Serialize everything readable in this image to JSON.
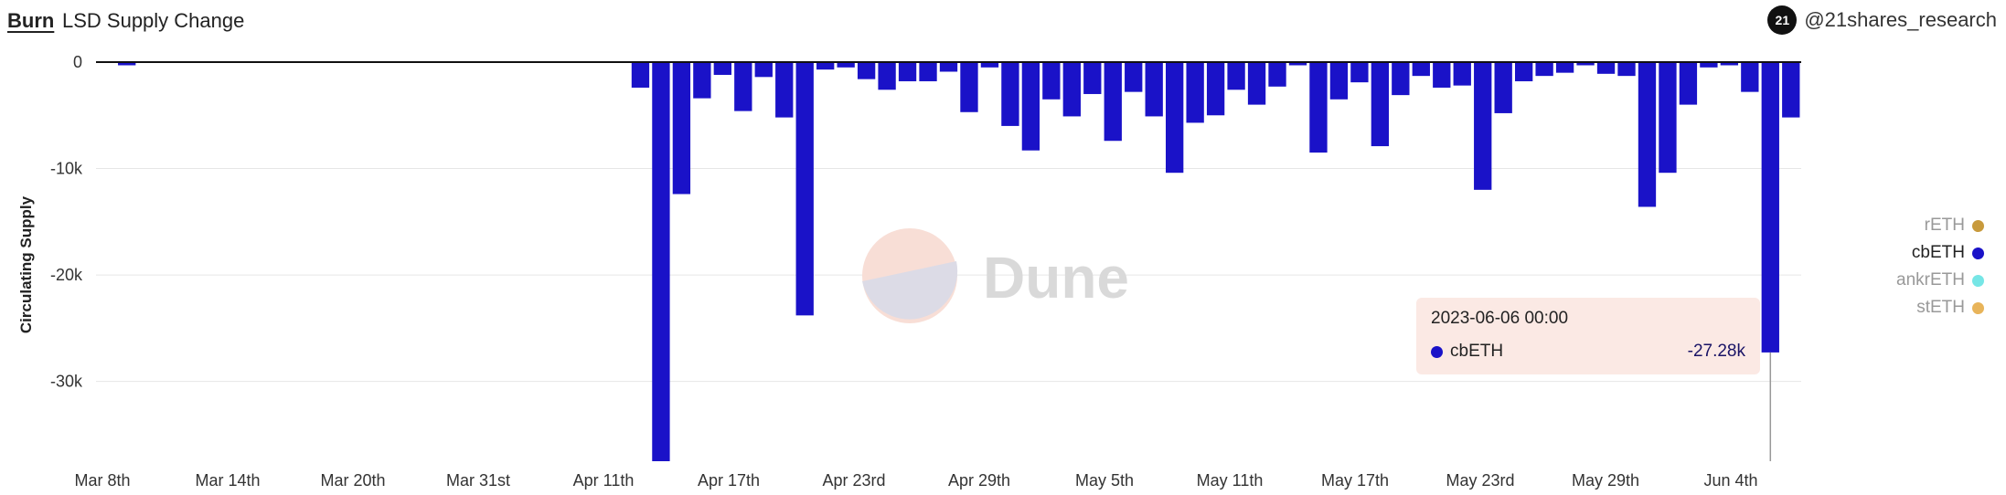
{
  "header": {
    "tabs": [
      {
        "label": "Burn",
        "active": true
      },
      {
        "label": "LSD Supply Change",
        "active": false
      }
    ],
    "brand_logo_text": "21",
    "brand_handle": "@21shares_research"
  },
  "watermark": {
    "text": "Dune"
  },
  "legend": [
    {
      "label": "rETH",
      "color": "#c89a3c",
      "highlighted": false
    },
    {
      "label": "cbETH",
      "color": "#1a12c8",
      "highlighted": true
    },
    {
      "label": "ankrETH",
      "color": "#76e6e6",
      "highlighted": false
    },
    {
      "label": "stETH",
      "color": "#e8b45a",
      "highlighted": false
    }
  ],
  "tooltip": {
    "title": "2023-06-06 00:00",
    "series": "cbETH",
    "value": "-27.28k",
    "color": "#1a12c8"
  },
  "chart_data": {
    "type": "bar",
    "ylabel": "Circulating Supply",
    "xlabel": "",
    "ylim": [
      -37500,
      0
    ],
    "yticks": [
      0,
      -10000,
      -20000,
      -30000
    ],
    "ytick_labels": [
      "0",
      "-10k",
      "-20k",
      "-30k"
    ],
    "xtick_labels": [
      "Mar 8th",
      "Mar 14th",
      "Mar 20th",
      "Mar 31st",
      "Apr 11th",
      "Apr 17th",
      "Apr 23rd",
      "Apr 29th",
      "May 5th",
      "May 11th",
      "May 17th",
      "May 23rd",
      "May 29th",
      "Jun 4th"
    ],
    "grid": true,
    "legend_position": "right",
    "series": [
      {
        "name": "cbETH",
        "color": "#1a12c8",
        "values": [
          -50,
          -300,
          -30,
          -20,
          -20,
          -20,
          -20,
          -20,
          -20,
          -20,
          -20,
          -20,
          -20,
          -20,
          -20,
          -20,
          -20,
          -20,
          -20,
          -20,
          -20,
          -20,
          -20,
          -20,
          -20,
          -20,
          -2400,
          -37500,
          -12400,
          -3400,
          -1200,
          -4600,
          -1400,
          -5200,
          -23800,
          -700,
          -500,
          -1600,
          -2600,
          -1800,
          -1800,
          -900,
          -4700,
          -500,
          -6000,
          -8300,
          -3500,
          -5100,
          -3000,
          -7400,
          -2800,
          -5100,
          -10400,
          -5700,
          -5000,
          -2600,
          -4000,
          -2300,
          -300,
          -8500,
          -3500,
          -1900,
          -7900,
          -3100,
          -1300,
          -2400,
          -2200,
          -12000,
          -4800,
          -1800,
          -1300,
          -1000,
          -300,
          -1100,
          -1300,
          -13600,
          -10400,
          -4000,
          -500,
          -300,
          -2800,
          -27280,
          -5200
        ]
      }
    ]
  }
}
